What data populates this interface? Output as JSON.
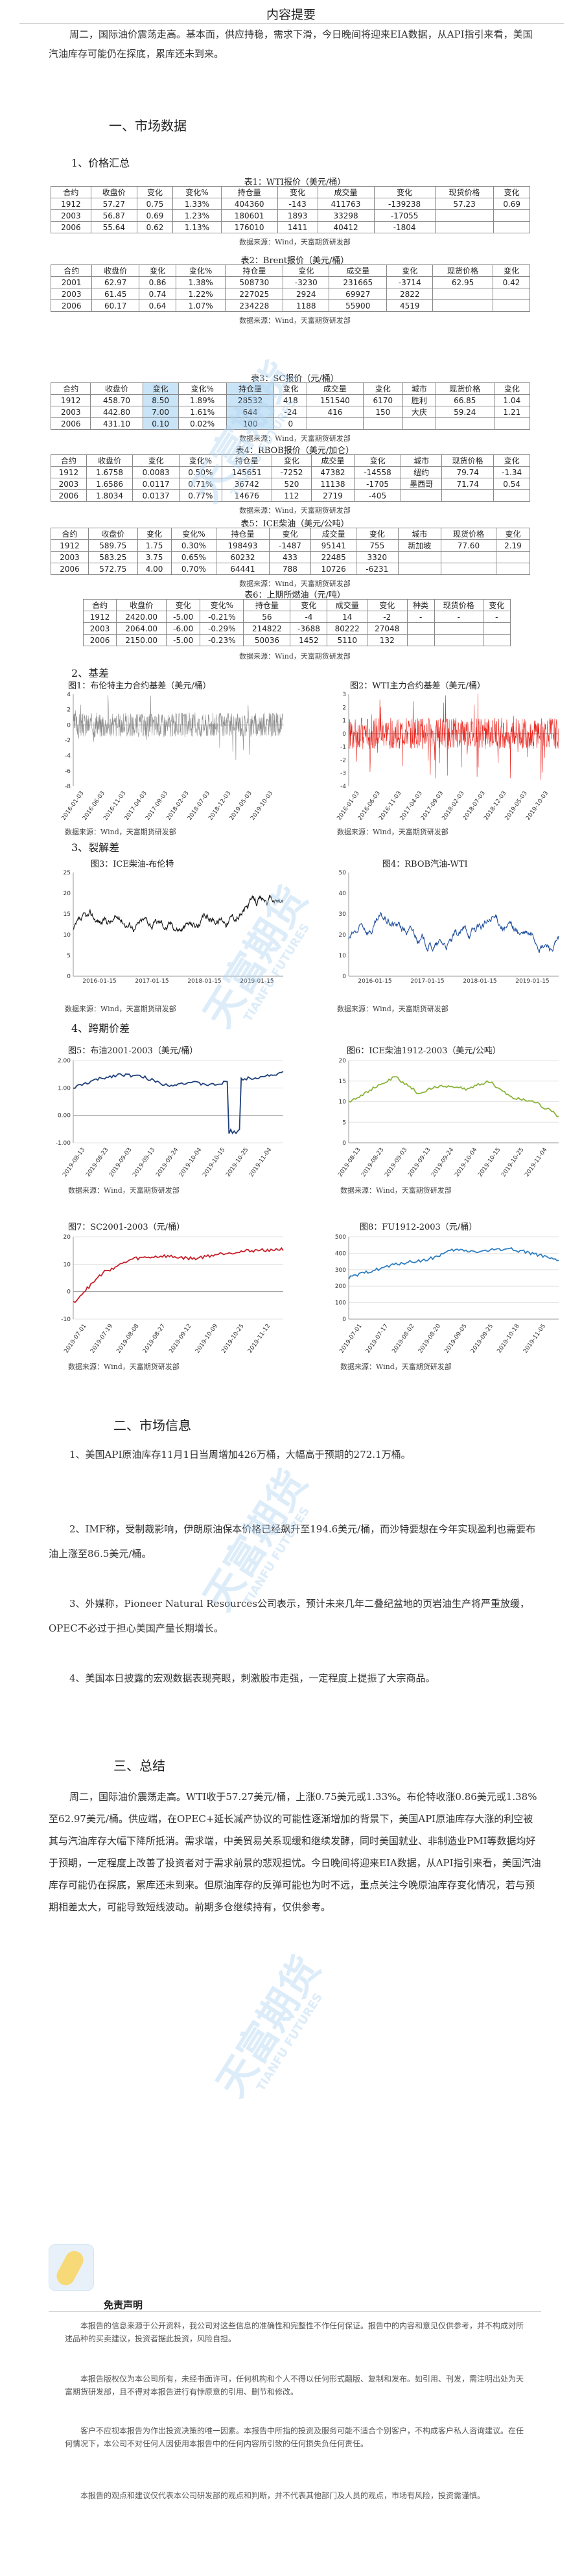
{
  "title": "内容提要",
  "summary_paragraph": "周二，国际油价震荡走高。基本面，供应持稳，需求下滑，今日晚间将迎来EIA数据，从API指引来看，美国汽油库存可能仍在探底，累库还未到来。",
  "section1": {
    "heading": "一、市场数据",
    "sub1": "1、价格汇总",
    "sub2": "2、基差",
    "sub3": "3、裂解差",
    "sub4": "4、跨期价差"
  },
  "source_label": "数据来源：Wind，天富期货研发部",
  "tables": [
    {
      "caption": "表1：WTI报价（美元/桶）",
      "header": [
        "合约",
        "收盘价",
        "变化",
        "变化%",
        "持仓量",
        "变化",
        "成交量",
        "变化",
        "现货价格",
        "变化"
      ],
      "rows": [
        [
          "1912",
          "57.27",
          "0.75",
          "1.33%",
          "404360",
          "-143",
          "411763",
          "-139238",
          "57.23",
          "0.69"
        ],
        [
          "2003",
          "56.87",
          "0.69",
          "1.23%",
          "180601",
          "1893",
          "33298",
          "-17055",
          "",
          ""
        ],
        [
          "2006",
          "55.64",
          "0.62",
          "1.13%",
          "176010",
          "1411",
          "40412",
          "-1804",
          "",
          ""
        ]
      ]
    },
    {
      "caption": "表2：Brent报价（美元/桶）",
      "header": [
        "合约",
        "收盘价",
        "变化",
        "变化%",
        "持仓量",
        "变化",
        "成交量",
        "变化",
        "现货价格",
        "变化"
      ],
      "rows": [
        [
          "2001",
          "62.97",
          "0.86",
          "1.38%",
          "508730",
          "-3230",
          "231665",
          "-3714",
          "62.95",
          "0.42"
        ],
        [
          "2003",
          "61.45",
          "0.74",
          "1.22%",
          "227025",
          "2924",
          "69927",
          "2822",
          "",
          ""
        ],
        [
          "2006",
          "60.17",
          "0.64",
          "1.07%",
          "234228",
          "1188",
          "55900",
          "4519",
          "",
          ""
        ]
      ]
    },
    {
      "caption": "表3：SC报价（元/桶）",
      "header": [
        "合约",
        "收盘价",
        "变化",
        "变化%",
        "持仓量",
        "变化",
        "成交量",
        "变化",
        "城市",
        "现货价格",
        "变化"
      ],
      "rows": [
        [
          "1912",
          "458.70",
          "8.50",
          "1.89%",
          "28532",
          "418",
          "151540",
          "6170",
          "胜利",
          "66.85",
          "1.04"
        ],
        [
          "2003",
          "442.80",
          "7.00",
          "1.61%",
          "644",
          "-24",
          "416",
          "150",
          "大庆",
          "59.24",
          "1.21"
        ],
        [
          "2006",
          "431.10",
          "0.10",
          "0.02%",
          "100",
          "0",
          "",
          "",
          "",
          "",
          ""
        ]
      ]
    },
    {
      "caption": "表4：RBOB报价（美元/加仑）",
      "header": [
        "合约",
        "收盘价",
        "变化",
        "变化%",
        "持仓量",
        "变化",
        "成交量",
        "变化",
        "城市",
        "现货价格",
        "变化"
      ],
      "rows": [
        [
          "1912",
          "1.6758",
          "0.0083",
          "0.50%",
          "145651",
          "-7252",
          "47382",
          "-14558",
          "纽约",
          "79.74",
          "-1.34"
        ],
        [
          "2003",
          "1.6586",
          "0.0117",
          "0.71%",
          "36742",
          "520",
          "11138",
          "-1705",
          "墨西哥",
          "71.74",
          "0.54"
        ],
        [
          "2006",
          "1.8034",
          "0.0137",
          "0.77%",
          "14676",
          "112",
          "2719",
          "-405",
          "",
          "",
          ""
        ]
      ]
    },
    {
      "caption": "表5：ICE柴油（美元/公吨）",
      "header": [
        "合约",
        "收盘价",
        "变化",
        "变化%",
        "持仓量",
        "变化",
        "成交量",
        "变化",
        "城市",
        "现货价格",
        "变化"
      ],
      "rows": [
        [
          "1912",
          "589.75",
          "1.75",
          "0.30%",
          "198493",
          "-1487",
          "95141",
          "755",
          "新加坡",
          "77.60",
          "2.19"
        ],
        [
          "2003",
          "583.25",
          "3.75",
          "0.65%",
          "60232",
          "433",
          "22485",
          "3320",
          "",
          "",
          ""
        ],
        [
          "2006",
          "572.75",
          "4.00",
          "0.70%",
          "64441",
          "788",
          "10726",
          "-6231",
          "",
          "",
          ""
        ]
      ]
    },
    {
      "caption": "表6：上期所燃油（元/吨）",
      "header": [
        "合约",
        "收盘价",
        "变化",
        "变化%",
        "持仓量",
        "变化",
        "成交量",
        "变化",
        "种类",
        "现货价格",
        "变化"
      ],
      "rows": [
        [
          "1912",
          "2420.00",
          "-5.00",
          "-0.21%",
          "56",
          "-4",
          "14",
          "-2",
          "-",
          "-",
          "-"
        ],
        [
          "2003",
          "2064.00",
          "-6.00",
          "-0.29%",
          "214822",
          "-3688",
          "80222",
          "27048",
          "",
          "",
          ""
        ],
        [
          "2006",
          "2150.00",
          "-5.00",
          "-0.23%",
          "50036",
          "1452",
          "5110",
          "132",
          "",
          "",
          ""
        ]
      ]
    }
  ],
  "charts": [
    {
      "caption": "图1：布伦特主力合约基差（美元/桶）",
      "color": "#8a8a8a"
    },
    {
      "caption": "图2：WTI主力合约基差（美元/桶）",
      "color": "#e8231c"
    },
    {
      "caption": "图3：ICE柴油-布伦特",
      "color": "#111111"
    },
    {
      "caption": "图4：RBOB汽油-WTI",
      "color": "#1f4e9e"
    },
    {
      "caption": "图5：布油2001-2003（美元/桶）",
      "color": "#1e3f7a"
    },
    {
      "caption": "图6：ICE柴油1912-2003（美元/公吨）",
      "color": "#8bb43c"
    },
    {
      "caption": "图7：SC2001-2003（元/桶）",
      "color": "#c8202a"
    },
    {
      "caption": "图8：FU1912-2003（元/桶）",
      "color": "#2f7fc2"
    }
  ],
  "chart_data": [
    {
      "type": "line",
      "title": "图1：布伦特主力合约基差（美元/桶）",
      "ylim": [
        -8,
        4
      ],
      "yticks": [
        "4",
        "2",
        "0",
        "-2",
        "-4",
        "-6",
        "-8"
      ],
      "xticks": [
        "2016-01-03",
        "2016-06-03",
        "2016-11-03",
        "2017-04-03",
        "2017-09-03",
        "2018-02-03",
        "2018-07-03",
        "2018-12-03",
        "2019-05-03",
        "2019-10-03"
      ]
    },
    {
      "type": "line",
      "title": "图2：WTI主力合约基差（美元/桶）",
      "ylim": [
        -4,
        3
      ],
      "yticks": [
        "3",
        "2",
        "1",
        "0",
        "-1",
        "-2",
        "-3",
        "-4"
      ],
      "xticks": [
        "2016-01-03",
        "2016-06-03",
        "2016-11-03",
        "2017-04-03",
        "2017-09-03",
        "2018-02-03",
        "2018-07-03",
        "2018-12-03",
        "2019-05-03",
        "2019-10-03"
      ]
    },
    {
      "type": "line",
      "title": "图3：ICE柴油-布伦特",
      "ylim": [
        0,
        25
      ],
      "yticks": [
        "25",
        "20",
        "15",
        "10",
        "5",
        "0"
      ],
      "xticks": [
        "2016-01-15",
        "2017-01-15",
        "2018-01-15",
        "2019-01-15"
      ]
    },
    {
      "type": "line",
      "title": "图4：RBOB汽油-WTI",
      "ylim": [
        0,
        50
      ],
      "yticks": [
        "50",
        "40",
        "30",
        "20",
        "10",
        "0"
      ],
      "xticks": [
        "2016-01-15",
        "2017-01-15",
        "2018-01-15",
        "2019-01-15"
      ]
    },
    {
      "type": "line",
      "title": "图5：布油2001-2003（美元/桶）",
      "ylim": [
        -1,
        2
      ],
      "yticks": [
        "2.00",
        "1.00",
        "0.00",
        "-1.00"
      ],
      "xticks": [
        "2019-08-13",
        "2019-08-23",
        "2019-09-03",
        "2019-09-13",
        "2019-09-24",
        "2019-10-04",
        "2019-10-15",
        "2019-10-25",
        "2019-11-04"
      ],
      "x": [
        "2019-08-13",
        "2019-08-23",
        "2019-09-03",
        "2019-09-13",
        "2019-09-24",
        "2019-10-04",
        "2019-10-15",
        "2019-10-25",
        "2019-11-04",
        "2019-11-12"
      ],
      "series": [
        {
          "values": [
            1.0,
            1.3,
            1.5,
            1.4,
            1.1,
            1.2,
            1.1,
            1.3,
            1.4,
            1.55
          ]
        }
      ]
    },
    {
      "type": "line",
      "title": "图6：ICE柴油1912-2003（美元/公吨）",
      "ylim": [
        0,
        20
      ],
      "yticks": [
        "20",
        "15",
        "10",
        "5",
        "0"
      ],
      "xticks": [
        "2019-08-13",
        "2019-08-23",
        "2019-09-03",
        "2019-09-13",
        "2019-09-24",
        "2019-10-04",
        "2019-10-15",
        "2019-10-25",
        "2019-11-04"
      ],
      "x": [
        "2019-08-13",
        "2019-08-23",
        "2019-09-03",
        "2019-09-13",
        "2019-09-24",
        "2019-10-04",
        "2019-10-15",
        "2019-10-25",
        "2019-11-04",
        "2019-11-12"
      ],
      "series": [
        {
          "values": [
            10,
            13,
            16,
            12,
            14,
            13,
            15,
            11,
            10,
            6.5
          ]
        }
      ]
    },
    {
      "type": "line",
      "title": "图7：SC2001-2003（元/桶）",
      "ylim": [
        -10,
        20
      ],
      "yticks": [
        "20",
        "10",
        "0",
        "-10"
      ],
      "xticks": [
        "2019-07-01",
        "2019-07-19",
        "2019-08-08",
        "2019-08-27",
        "2019-09-12",
        "2019-10-09",
        "2019-10-25",
        "2019-11-12"
      ],
      "x": [
        "2019-07-01",
        "2019-07-19",
        "2019-08-08",
        "2019-08-27",
        "2019-09-12",
        "2019-10-09",
        "2019-10-25",
        "2019-11-12"
      ],
      "series": [
        {
          "values": [
            -4,
            7,
            12,
            13,
            12,
            14,
            15,
            15.5
          ]
        }
      ]
    },
    {
      "type": "line",
      "title": "图8：FU1912-2003（元/桶）",
      "ylim": [
        0,
        500
      ],
      "yticks": [
        "500",
        "400",
        "300",
        "200",
        "100",
        "0"
      ],
      "xticks": [
        "2019-07-01",
        "2019-07-17",
        "2019-08-02",
        "2019-08-20",
        "2019-09-05",
        "2019-09-25",
        "2019-10-18",
        "2019-11-05"
      ],
      "x": [
        "2019-07-01",
        "2019-07-17",
        "2019-08-02",
        "2019-08-20",
        "2019-09-05",
        "2019-09-25",
        "2019-10-18",
        "2019-11-05",
        "2019-11-12"
      ],
      "series": [
        {
          "values": [
            250,
            300,
            340,
            360,
            420,
            410,
            430,
            400,
            350
          ]
        }
      ]
    }
  ],
  "section2": {
    "heading": "二、市场信息",
    "items": [
      "1、美国API原油库存11月1日当周增加426万桶，大幅高于预期的272.1万桶。",
      "2、IMF称，受制裁影响，伊朗原油保本价格已经飙升至194.6美元/桶，而沙特要想在今年实现盈利也需要布油上涨至86.5美元/桶。",
      "3、外媒称，Pioneer Natural Resources公司表示，预计未来几年二叠纪盆地的页岩油生产将严重放缓，OPEC不必过于担心美国产量长期增长。",
      "4、美国本日披露的宏观数据表现亮眼，刺激股市走强，一定程度上提振了大宗商品。"
    ]
  },
  "section3": {
    "heading": "三、总结",
    "text": "周二，国际油价震荡走高。WTI收于57.27美元/桶，上涨0.75美元或1.33%。布伦特收涨0.86美元或1.38%至62.97美元/桶。供应端，在OPEC+延长减产协议的可能性逐渐增加的背景下，美国API原油库存大涨的利空被其与汽油库存大幅下降所抵消。需求端，中美贸易关系现缓和继续发酵，同时美国就业、非制造业PMI等数据均好于预期，一定程度上改善了投资者对于需求前景的悲观担忧。今日晚间将迎来EIA数据，从API指引来看，美国汽油库存可能仍在探底，累库还未到来。但原油库存的反弹可能也为时不远，重点关注今晚原油库存变化情况，若与预期相差太大，可能导致短线波动。前期多仓继续持有，仅供参考。"
  },
  "disclaimer": {
    "title": "免责声明",
    "paragraphs": [
      "本报告的信息来源于公开资料，我公司对这些信息的准确性和完整性不作任何保证。报告中的内容和意见仅供参考，并不构成对所述品种的买卖建议，投资者据此投资，风险自担。",
      "本报告版权仅为本公司所有，未经书面许可，任何机构和个人不得以任何形式翻版、复制和发布。如引用、刊发，需注明出处为天富期货研发部，且不得对本报告进行有悖原意的引用、删节和修改。",
      "客户不应视本报告为作出投资决策的唯一因素。本报告中所指的投资及服务可能不适合个别客户，不构成客户私人咨询建议。在任何情况下，本公司不对任何人因使用本报告中的任何内容所引致的任何损失负任何责任。",
      "本报告的观点和建议仅代表本公司研发部的观点和判断，并不代表其他部门及人员的观点，市场有风险，投资需谨慎。"
    ]
  },
  "watermark": {
    "cn": "天富期货",
    "en": "TIANFU FUTURES"
  }
}
